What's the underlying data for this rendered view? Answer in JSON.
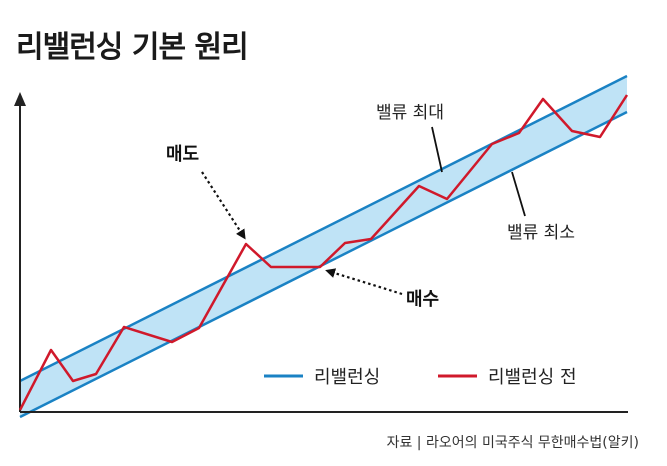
{
  "title": "리밸런싱 기본 원리",
  "labels": {
    "band_upper": "밸류 최대",
    "band_lower": "밸류 최소",
    "sell": "매도",
    "buy": "매수"
  },
  "legend": {
    "rebalanced": "리밸런싱",
    "pre_rebalance": "리밸런싱 전"
  },
  "source": "자료 | 라오어의 미국주식 무한매수법(알키)",
  "colors": {
    "band_fill": "#bfe3f6",
    "band_line": "#1a82c4",
    "price_line": "#d0192b",
    "axis": "#222222",
    "arrow": "#111111"
  }
}
